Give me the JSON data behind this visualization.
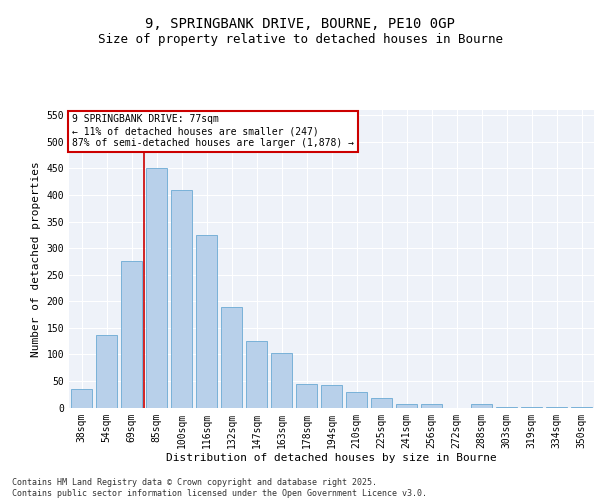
{
  "title1": "9, SPRINGBANK DRIVE, BOURNE, PE10 0GP",
  "title2": "Size of property relative to detached houses in Bourne",
  "xlabel": "Distribution of detached houses by size in Bourne",
  "ylabel": "Number of detached properties",
  "categories": [
    "38sqm",
    "54sqm",
    "69sqm",
    "85sqm",
    "100sqm",
    "116sqm",
    "132sqm",
    "147sqm",
    "163sqm",
    "178sqm",
    "194sqm",
    "210sqm",
    "225sqm",
    "241sqm",
    "256sqm",
    "272sqm",
    "288sqm",
    "303sqm",
    "319sqm",
    "334sqm",
    "350sqm"
  ],
  "values": [
    35,
    137,
    275,
    450,
    410,
    325,
    190,
    125,
    102,
    45,
    43,
    30,
    17,
    6,
    7,
    0,
    6,
    1,
    1,
    1,
    1
  ],
  "bar_color": "#b8d0ea",
  "bar_edge_color": "#6aaad4",
  "vline_color": "#cc0000",
  "vline_x_index": 2.5,
  "annotation_text": "9 SPRINGBANK DRIVE: 77sqm\n← 11% of detached houses are smaller (247)\n87% of semi-detached houses are larger (1,878) →",
  "annotation_box_color": "#ffffff",
  "annotation_box_edge_color": "#cc0000",
  "ylim": [
    0,
    560
  ],
  "yticks": [
    0,
    50,
    100,
    150,
    200,
    250,
    300,
    350,
    400,
    450,
    500,
    550
  ],
  "background_color": "#eef2f9",
  "footer_text": "Contains HM Land Registry data © Crown copyright and database right 2025.\nContains public sector information licensed under the Open Government Licence v3.0.",
  "title_fontsize": 10,
  "subtitle_fontsize": 9,
  "axis_label_fontsize": 8,
  "tick_fontsize": 7,
  "footer_fontsize": 6,
  "annot_fontsize": 7
}
